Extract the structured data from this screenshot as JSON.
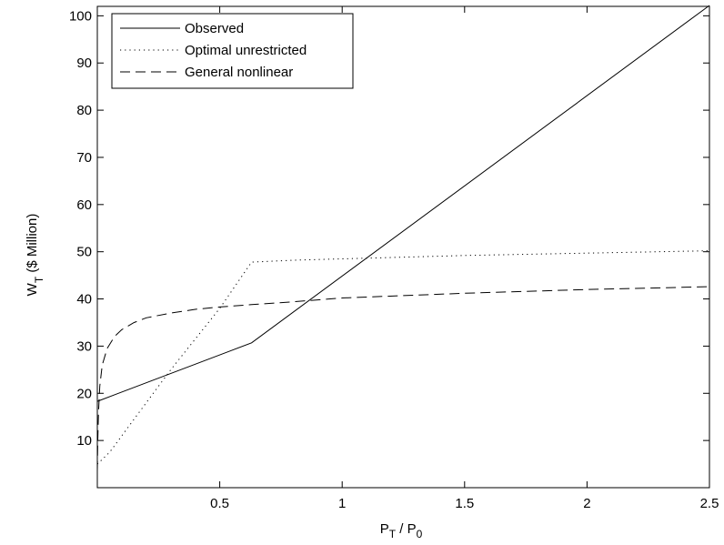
{
  "chart_data": {
    "type": "line",
    "xlabel": {
      "main": "P",
      "sub": "T",
      "sep": " / ",
      "main2": "P",
      "sub2": "0"
    },
    "ylabel": {
      "main": "W",
      "sub": "T",
      "rest": "  ($ Million)"
    },
    "xlim": [
      0.0,
      2.5
    ],
    "ylim": [
      0,
      102
    ],
    "xticks": [
      0.5,
      1,
      1.5,
      2,
      2.5
    ],
    "xtick_labels": [
      "0.5",
      "1",
      "1.5",
      "2",
      "2.5"
    ],
    "yticks": [
      10,
      20,
      30,
      40,
      50,
      60,
      70,
      80,
      90,
      100
    ],
    "ytick_labels": [
      "10",
      "20",
      "30",
      "40",
      "50",
      "60",
      "70",
      "80",
      "90",
      "100"
    ],
    "grid": false,
    "legend_position": "top-left",
    "series": [
      {
        "name": "Observed",
        "style": "solid",
        "x": [
          0.0,
          0.63,
          2.5
        ],
        "y": [
          18.3,
          30.7,
          102.2
        ]
      },
      {
        "name": "Optimal unrestricted",
        "style": "dotted",
        "x": [
          0.0,
          0.05,
          0.1,
          0.2,
          0.3,
          0.4,
          0.5,
          0.63,
          0.8,
          1.0,
          1.5,
          2.0,
          2.5
        ],
        "y": [
          5.0,
          7.5,
          11.0,
          18.0,
          25.0,
          31.5,
          38.0,
          47.8,
          48.2,
          48.5,
          49.2,
          49.7,
          50.2
        ]
      },
      {
        "name": "General nonlinear",
        "style": "dashed",
        "x": [
          0.0,
          0.002,
          0.005,
          0.01,
          0.02,
          0.04,
          0.07,
          0.1,
          0.15,
          0.2,
          0.3,
          0.4,
          0.5,
          0.63,
          0.8,
          1.0,
          1.5,
          2.0,
          2.5
        ],
        "y": [
          3.5,
          10.0,
          16.0,
          21.5,
          26.0,
          29.5,
          32.0,
          33.5,
          35.0,
          36.0,
          37.0,
          37.8,
          38.3,
          38.8,
          39.4,
          40.2,
          41.2,
          42.0,
          42.6
        ]
      }
    ]
  }
}
